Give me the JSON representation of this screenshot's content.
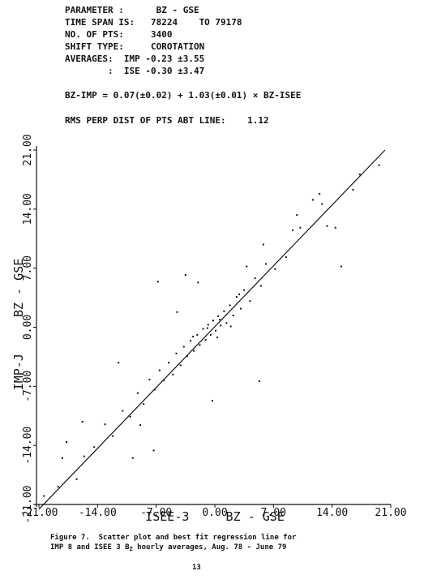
{
  "chart_data": {
    "type": "scatter",
    "header": [
      "PARAMETER :      BZ - GSE",
      "TIME SPAN IS:   78224    TO 79178",
      "NO. OF PTS:     3400",
      "SHIFT TYPE:     COROTATION",
      "AVERAGES:  IMP -0.23 ±3.55",
      "        :  ISE -0.30 ±3.47",
      "BZ-IMP = 0.07(±0.02) + 1.03(±0.01) × BZ-ISEE",
      "RMS PERP DIST OF PTS ABT LINE:    1.12"
    ],
    "x_label": "ISEE-3     BZ - GSE",
    "y_label": "IMP-J     BZ - GSE",
    "fit_line": {
      "intercept": 0.07,
      "slope": 1.03
    },
    "xlim": [
      -21,
      21
    ],
    "ylim": [
      -21,
      21
    ],
    "xticks": [
      {
        "value": -21,
        "label": "-21.00"
      },
      {
        "value": -14,
        "label": "-14.00"
      },
      {
        "value": -7,
        "label": "-7.00"
      },
      {
        "value": 0,
        "label": "0.00"
      },
      {
        "value": 7,
        "label": "7.00"
      },
      {
        "value": 14,
        "label": "14.00"
      },
      {
        "value": 21,
        "label": "21.00"
      }
    ],
    "yticks": [
      {
        "value": -21,
        "label": "-21.00"
      },
      {
        "value": -14,
        "label": "-14.00"
      },
      {
        "value": -7,
        "label": "-7.00"
      },
      {
        "value": 0,
        "label": "0.00"
      },
      {
        "value": 7,
        "label": "7.00"
      },
      {
        "value": 14,
        "label": "14.00"
      },
      {
        "value": 21,
        "label": "21.00"
      }
    ],
    "color": "#111111",
    "x": [
      19.6,
      17.3,
      12.5,
      11.7,
      12.8,
      10.2,
      9.3,
      13.4,
      14.4,
      15.1,
      8.5,
      7.2,
      6.1,
      5.5,
      4.8,
      4.2,
      3.5,
      3.1,
      2.6,
      2.2,
      1.8,
      1.4,
      1.1,
      0.7,
      0.4,
      0.1,
      -0.2,
      -0.5,
      -0.8,
      -1.1,
      -1.4,
      -1.8,
      -2.1,
      -2.5,
      -2.9,
      -3.3,
      -3.7,
      -4.1,
      -4.6,
      -5.0,
      -5.5,
      -6.1,
      -6.6,
      -7.2,
      -7.8,
      -8.5,
      -9.2,
      -10.1,
      -11.0,
      -12.2,
      -13.1,
      -14.4,
      -15.6,
      -17.7,
      -18.2,
      -20.4,
      -6.8,
      -3.5,
      -2.0,
      5.3,
      -0.3,
      -9.8,
      -16.5,
      -18.7,
      0.6,
      1.9,
      -0.9,
      0.3,
      2.9,
      -2.6,
      5.8,
      -7.3,
      -8.9,
      16.5,
      9.8,
      3.8,
      -4.5,
      -11.5,
      -15.8
    ],
    "y": [
      19.2,
      18.1,
      15.8,
      15.1,
      14.6,
      11.8,
      11.5,
      12.0,
      11.8,
      7.2,
      8.3,
      6.9,
      7.5,
      4.9,
      5.8,
      3.1,
      4.4,
      2.2,
      3.6,
      1.4,
      2.6,
      0.5,
      1.9,
      0.2,
      1.3,
      -0.4,
      0.8,
      -0.9,
      0.3,
      -1.5,
      -0.2,
      -2.1,
      -0.9,
      -2.8,
      -1.6,
      -3.4,
      -2.3,
      -4.5,
      -3.1,
      -5.6,
      -4.2,
      -6.3,
      -5.1,
      -7.4,
      -6.2,
      -9.1,
      -7.8,
      -10.6,
      -9.9,
      -12.9,
      -11.5,
      -14.2,
      -15.3,
      -13.6,
      -15.5,
      -20.0,
      5.4,
      6.2,
      5.3,
      -6.4,
      -8.7,
      -15.5,
      -18.0,
      -18.9,
      0.9,
      0.1,
      -0.1,
      -1.2,
      3.9,
      -1.1,
      9.8,
      -14.6,
      -11.6,
      16.3,
      13.3,
      7.2,
      1.8,
      -4.2,
      -11.2
    ]
  },
  "caption": [
    "Figure 7.  Scatter plot and best fit regression line for",
    "IMP 8 and ISEE 3 B",
    "Z",
    " hourly averages, Aug. 78 - June 79"
  ],
  "page_number": "13"
}
